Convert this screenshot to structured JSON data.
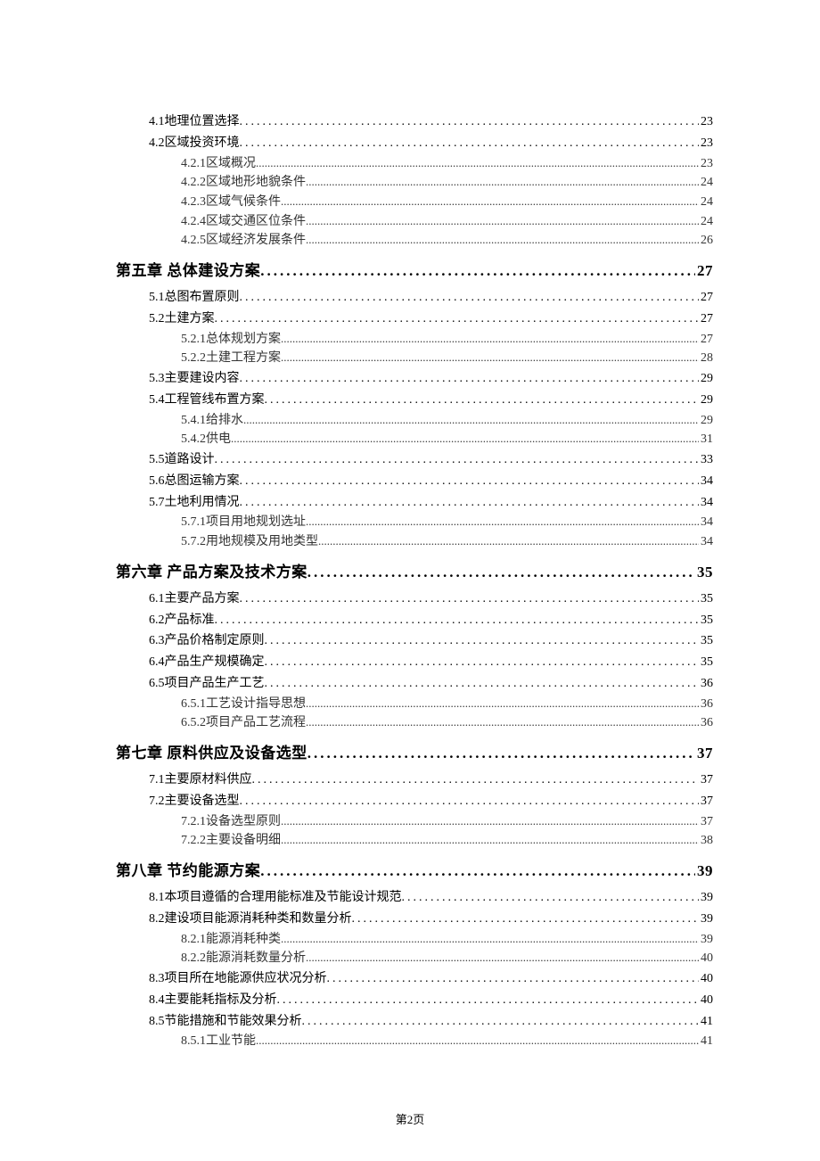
{
  "footer": "第2页",
  "entries": [
    {
      "level": 2,
      "text": "4.1地理位置选择",
      "page": "23"
    },
    {
      "level": 2,
      "text": "4.2区域投资环境",
      "page": "23"
    },
    {
      "level": 3,
      "text": "4.2.1区域概况",
      "page": "23"
    },
    {
      "level": 3,
      "text": "4.2.2区域地形地貌条件",
      "page": "24"
    },
    {
      "level": 3,
      "text": "4.2.3区域气候条件",
      "page": "24"
    },
    {
      "level": 3,
      "text": "4.2.4区域交通区位条件",
      "page": "24"
    },
    {
      "level": 3,
      "text": "4.2.5区域经济发展条件",
      "page": "26"
    },
    {
      "level": 1,
      "text": "第五章 总体建设方案",
      "page": "27"
    },
    {
      "level": 2,
      "text": "5.1总图布置原则",
      "page": "27"
    },
    {
      "level": 2,
      "text": "5.2土建方案",
      "page": "27"
    },
    {
      "level": 3,
      "text": "5.2.1总体规划方案",
      "page": "27"
    },
    {
      "level": 3,
      "text": "5.2.2土建工程方案",
      "page": "28"
    },
    {
      "level": 2,
      "text": "5.3主要建设内容",
      "page": "29"
    },
    {
      "level": 2,
      "text": "5.4工程管线布置方案",
      "page": "29"
    },
    {
      "level": 3,
      "text": "5.4.1给排水",
      "page": "29"
    },
    {
      "level": 3,
      "text": "5.4.2供电",
      "page": "31"
    },
    {
      "level": 2,
      "text": "5.5道路设计",
      "page": "33"
    },
    {
      "level": 2,
      "text": "5.6总图运输方案",
      "page": "34"
    },
    {
      "level": 2,
      "text": "5.7土地利用情况",
      "page": "34"
    },
    {
      "level": 3,
      "text": "5.7.1项目用地规划选址",
      "page": "34"
    },
    {
      "level": 3,
      "text": "5.7.2用地规模及用地类型",
      "page": "34"
    },
    {
      "level": 1,
      "text": "第六章 产品方案及技术方案",
      "page": "35"
    },
    {
      "level": 2,
      "text": "6.1主要产品方案",
      "page": "35"
    },
    {
      "level": 2,
      "text": "6.2产品标准",
      "page": "35"
    },
    {
      "level": 2,
      "text": "6.3产品价格制定原则",
      "page": "35"
    },
    {
      "level": 2,
      "text": "6.4产品生产规模确定",
      "page": "35"
    },
    {
      "level": 2,
      "text": "6.5项目产品生产工艺",
      "page": "36"
    },
    {
      "level": 3,
      "text": "6.5.1工艺设计指导思想",
      "page": "36"
    },
    {
      "level": 3,
      "text": "6.5.2项目产品工艺流程",
      "page": "36"
    },
    {
      "level": 1,
      "text": "第七章 原料供应及设备选型",
      "page": "37"
    },
    {
      "level": 2,
      "text": "7.1主要原材料供应",
      "page": "37"
    },
    {
      "level": 2,
      "text": "7.2主要设备选型",
      "page": "37"
    },
    {
      "level": 3,
      "text": "7.2.1设备选型原则",
      "page": "37"
    },
    {
      "level": 3,
      "text": "7.2.2主要设备明细",
      "page": "38"
    },
    {
      "level": 1,
      "text": "第八章 节约能源方案",
      "page": "39"
    },
    {
      "level": 2,
      "text": "8.1本项目遵循的合理用能标准及节能设计规范",
      "page": "39"
    },
    {
      "level": 2,
      "text": "8.2建设项目能源消耗种类和数量分析",
      "page": "39"
    },
    {
      "level": 3,
      "text": "8.2.1能源消耗种类",
      "page": "39"
    },
    {
      "level": 3,
      "text": "8.2.2能源消耗数量分析",
      "page": "40"
    },
    {
      "level": 2,
      "text": "8.3项目所在地能源供应状况分析",
      "page": "40"
    },
    {
      "level": 2,
      "text": "8.4主要能耗指标及分析",
      "page": "40"
    },
    {
      "level": 2,
      "text": "8.5节能措施和节能效果分析",
      "page": "41"
    },
    {
      "level": 3,
      "text": "8.5.1工业节能",
      "page": "41"
    }
  ]
}
